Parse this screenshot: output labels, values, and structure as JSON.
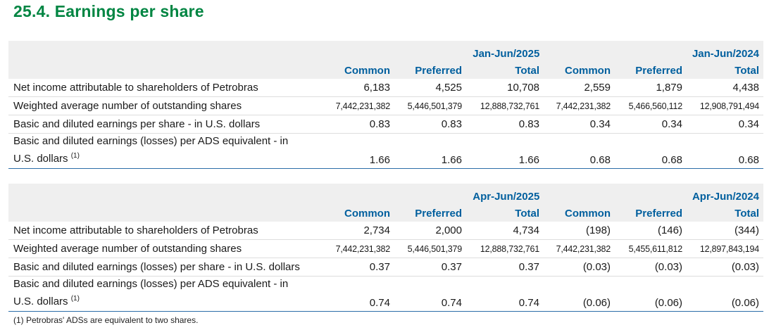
{
  "title": "25.4. Earnings per share",
  "columns": [
    "Common",
    "Preferred",
    "Total",
    "Common",
    "Preferred",
    "Total"
  ],
  "table1": {
    "period_a": "Jan-Jun/2025",
    "period_b": "Jan-Jun/2024",
    "rows": [
      {
        "label": "Net income attributable to shareholders of Petrobras",
        "values": [
          "6,183",
          "4,525",
          "10,708",
          "2,559",
          "1,879",
          "4,438"
        ]
      },
      {
        "label": "Weighted average number of outstanding shares",
        "values": [
          "7,442,231,382",
          "5,446,501,379",
          "12,888,732,761",
          "7,442,231,382",
          "5,466,560,112",
          "12,908,791,494"
        ]
      },
      {
        "label": "Basic and diluted earnings per share - in U.S. dollars",
        "values": [
          "0.83",
          "0.83",
          "0.83",
          "0.34",
          "0.34",
          "0.34"
        ]
      },
      {
        "label_line1": "Basic and diluted earnings (losses) per ADS equivalent - in",
        "label_line2": "U.S. dollars",
        "footnote_mark": "(1)",
        "values": [
          "1.66",
          "1.66",
          "1.66",
          "0.68",
          "0.68",
          "0.68"
        ]
      }
    ]
  },
  "table2": {
    "period_a": "Apr-Jun/2025",
    "period_b": "Apr-Jun/2024",
    "rows": [
      {
        "label": "Net income attributable to shareholders of Petrobras",
        "values": [
          "2,734",
          "2,000",
          "4,734",
          "(198)",
          "(146)",
          "(344)"
        ]
      },
      {
        "label": "Weighted average number of outstanding shares",
        "values": [
          "7,442,231,382",
          "5,446,501,379",
          "12,888,732,761",
          "7,442,231,382",
          "5,455,611,812",
          "12,897,843,194"
        ]
      },
      {
        "label": "Basic and diluted earnings (losses) per share - in U.S. dollars",
        "values": [
          "0.37",
          "0.37",
          "0.37",
          "(0.03)",
          "(0.03)",
          "(0.03)"
        ]
      },
      {
        "label_line1": "Basic and diluted earnings (losses) per ADS equivalent - in",
        "label_line2": "U.S. dollars",
        "footnote_mark": "(1)",
        "values": [
          "0.74",
          "0.74",
          "0.74",
          "(0.06)",
          "(0.06)",
          "(0.06)"
        ]
      }
    ]
  },
  "footnote": "(1) Petrobras' ADSs are equivalent to two shares."
}
